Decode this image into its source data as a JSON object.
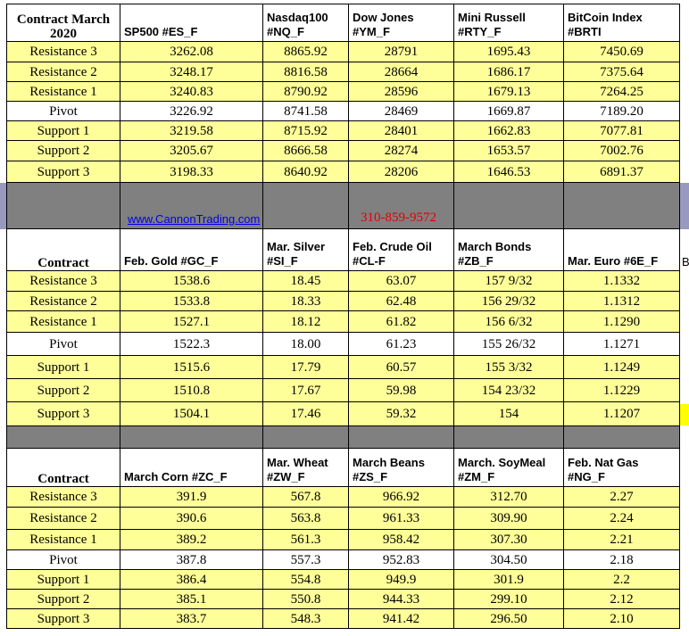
{
  "tables": [
    {
      "header": [
        "Contract March\n2020",
        "SP500 #ES_F",
        "Nasdaq100\n#NQ_F",
        "Dow Jones\n#YM_F",
        "Mini Russell\n#RTY_F",
        "BitCoin Index\n#BRTI"
      ],
      "rows": [
        [
          "Resistance 3",
          "3262.08",
          "8865.92",
          "28791",
          "1695.43",
          "7450.69"
        ],
        [
          "Resistance 2",
          "3248.17",
          "8816.58",
          "28664",
          "1686.17",
          "7375.64"
        ],
        [
          "Resistance 1",
          "3240.83",
          "8790.92",
          "28596",
          "1679.13",
          "7264.25"
        ],
        [
          "Pivot",
          "3226.92",
          "8741.58",
          "28469",
          "1669.87",
          "7189.20"
        ],
        [
          "Support 1",
          "3219.58",
          "8715.92",
          "28401",
          "1662.83",
          "7077.81"
        ],
        [
          "Support 2",
          "3205.67",
          "8666.58",
          "28274",
          "1653.57",
          "7002.76"
        ],
        [
          "Support 3",
          "3198.33",
          "8640.92",
          "28206",
          "1646.53",
          "6891.37"
        ]
      ]
    },
    {
      "header": [
        "Contract",
        "Feb. Gold #GC_F",
        "Mar. Silver\n#SI_F",
        "Feb. Crude Oil\n#CL-F",
        "March Bonds\n#ZB_F",
        "Mar. Euro #6E_F"
      ],
      "rows": [
        [
          "Resistance 3",
          "1538.6",
          "18.45",
          "63.07",
          "157  9/32",
          "1.1332"
        ],
        [
          "Resistance 2",
          "1533.8",
          "18.33",
          "62.48",
          "156 29/32",
          "1.1312"
        ],
        [
          "Resistance 1",
          "1527.1",
          "18.12",
          "61.82",
          "156  6/32",
          "1.1290"
        ],
        [
          "Pivot",
          "1522.3",
          "18.00",
          "61.23",
          "155 26/32",
          "1.1271"
        ],
        [
          "Support 1",
          "1515.6",
          "17.79",
          "60.57",
          "155  3/32",
          "1.1249"
        ],
        [
          "Support 2",
          "1510.8",
          "17.67",
          "59.98",
          "154 23/32",
          "1.1229"
        ],
        [
          "Support 3",
          "1504.1",
          "17.46",
          "59.32",
          "154",
          "1.1207"
        ]
      ]
    },
    {
      "header": [
        "Contract",
        "March  Corn #ZC_F",
        "Mar.  Wheat\n#ZW_F",
        "March Beans\n#ZS_F",
        "March.  SoyMeal\n#ZM_F",
        "Feb. Nat Gas\n#NG_F"
      ],
      "rows": [
        [
          "Resistance 3",
          "391.9",
          "567.8",
          "966.92",
          "312.70",
          "2.27"
        ],
        [
          "Resistance 2",
          "390.6",
          "563.8",
          "961.33",
          "309.90",
          "2.24"
        ],
        [
          "Resistance 1",
          "389.2",
          "561.3",
          "958.42",
          "307.30",
          "2.21"
        ],
        [
          "Pivot",
          "387.8",
          "557.3",
          "952.83",
          "304.50",
          "2.18"
        ],
        [
          "Support 1",
          "386.4",
          "554.8",
          "949.9",
          "301.9",
          "2.2"
        ],
        [
          "Support 2",
          "385.1",
          "550.8",
          "944.33",
          "299.10",
          "2.12"
        ],
        [
          "Support 3",
          "383.7",
          "548.3",
          "941.42",
          "296.50",
          "2.10"
        ]
      ]
    }
  ],
  "band": {
    "website": "www.CannonTrading.com",
    "phone": "310-859-9572"
  },
  "side_text": "B"
}
